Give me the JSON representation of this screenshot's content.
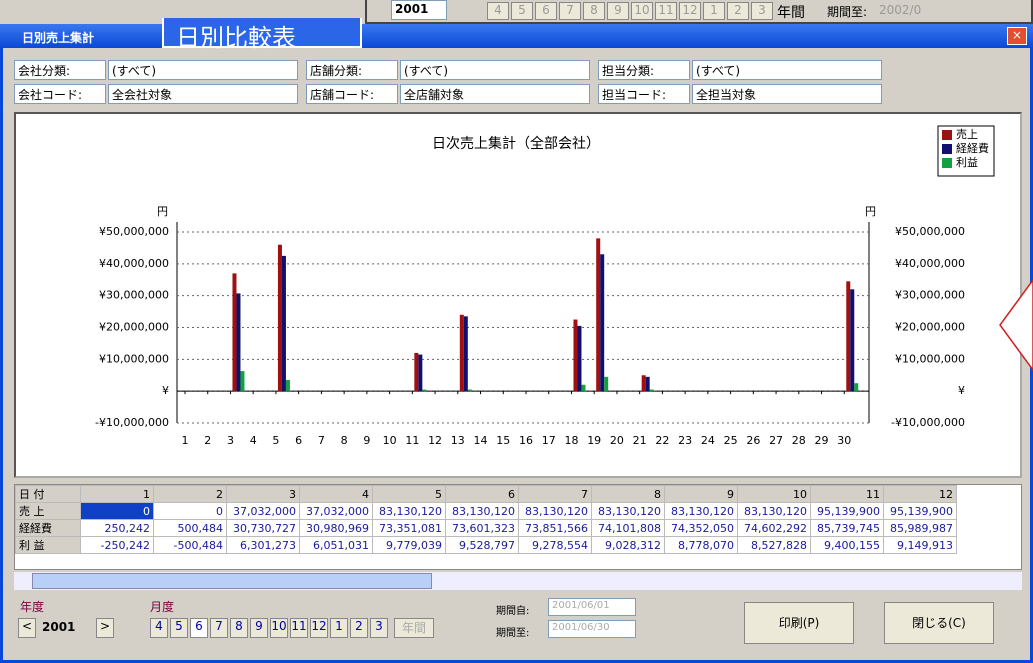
{
  "top_window": {
    "year": "2001",
    "months": [
      "4",
      "5",
      "6",
      "7",
      "8",
      "9",
      "10",
      "11",
      "12",
      "1",
      "2",
      "3"
    ],
    "annual": "年間",
    "period_to_label": "期間至:",
    "period_to_value": "2002/0"
  },
  "title_bar": {
    "title": "日別売上集計",
    "overlay_label": "日別比較表"
  },
  "filters": [
    {
      "label": "会社分類:",
      "value": "(すべて)"
    },
    {
      "label": "店舗分類:",
      "value": "(すべて)"
    },
    {
      "label": "担当分類:",
      "value": "(すべて)"
    }
  ],
  "codes": [
    {
      "label": "会社コード:",
      "value": "全会社対象"
    },
    {
      "label": "店舗コード:",
      "value": "全店舗対象"
    },
    {
      "label": "担当コード:",
      "value": "全担当対象"
    }
  ],
  "chart_data": {
    "type": "bar",
    "title": "日次売上集計（全部会社）",
    "y_label": "円",
    "y2_label": "円",
    "categories": [
      "1",
      "2",
      "3",
      "4",
      "5",
      "6",
      "7",
      "8",
      "9",
      "10",
      "11",
      "12",
      "13",
      "14",
      "15",
      "16",
      "17",
      "18",
      "19",
      "20",
      "21",
      "22",
      "23",
      "24",
      "25",
      "26",
      "27",
      "28",
      "29",
      "30"
    ],
    "series": [
      {
        "name": "売上",
        "color": "#a01010",
        "values": [
          0,
          0,
          37000000,
          0,
          46000000,
          0,
          0,
          0,
          0,
          0,
          12000000,
          0,
          24000000,
          0,
          0,
          0,
          0,
          22500000,
          48000000,
          0,
          5000000,
          0,
          0,
          0,
          0,
          0,
          0,
          0,
          0,
          34500000
        ]
      },
      {
        "name": "経経費",
        "color": "#10106e",
        "values": [
          0,
          0,
          30700000,
          0,
          42500000,
          0,
          0,
          0,
          0,
          0,
          11500000,
          0,
          23500000,
          0,
          0,
          0,
          0,
          20500000,
          43000000,
          0,
          4500000,
          0,
          0,
          0,
          0,
          0,
          0,
          0,
          0,
          32000000
        ]
      },
      {
        "name": "利益",
        "color": "#12a040",
        "values": [
          0,
          0,
          6300000,
          0,
          3500000,
          0,
          0,
          0,
          0,
          0,
          500000,
          0,
          500000,
          0,
          0,
          0,
          0,
          2000000,
          4500000,
          0,
          500000,
          0,
          0,
          0,
          0,
          0,
          0,
          0,
          0,
          2500000
        ]
      }
    ],
    "ylim": [
      -10000000,
      50000000
    ],
    "yticks": [
      {
        "value": -10000000,
        "label": "-¥10,000,000"
      },
      {
        "value": 0,
        "label": "¥"
      },
      {
        "value": 10000000,
        "label": "¥10,000,000"
      },
      {
        "value": 20000000,
        "label": "¥20,000,000"
      },
      {
        "value": 30000000,
        "label": "¥30,000,000"
      },
      {
        "value": 40000000,
        "label": "¥40,000,000"
      },
      {
        "value": 50000000,
        "label": "¥50,000,000"
      }
    ],
    "grid": true,
    "legend": "top-right"
  },
  "table": {
    "header": [
      "日 付",
      "1",
      "2",
      "3",
      "4",
      "5",
      "6",
      "7",
      "8",
      "9",
      "10",
      "11",
      "12"
    ],
    "rows": [
      [
        "売 上",
        "0",
        "0",
        "37,032,000",
        "37,032,000",
        "83,130,120",
        "83,130,120",
        "83,130,120",
        "83,130,120",
        "83,130,120",
        "83,130,120",
        "95,139,900",
        "95,139,900"
      ],
      [
        "経経費",
        "250,242",
        "500,484",
        "30,730,727",
        "30,980,969",
        "73,351,081",
        "73,601,323",
        "73,851,566",
        "74,101,808",
        "74,352,050",
        "74,602,292",
        "85,739,745",
        "85,989,987"
      ],
      [
        "利 益",
        "-250,242",
        "-500,484",
        "6,301,273",
        "6,051,031",
        "9,779,039",
        "9,528,797",
        "9,278,554",
        "9,028,312",
        "8,778,070",
        "8,527,828",
        "9,400,155",
        "9,149,913"
      ]
    ]
  },
  "footer": {
    "year_label": "年度",
    "year": "2001",
    "month_label": "月度",
    "months": [
      "4",
      "5",
      "6",
      "7",
      "8",
      "9",
      "10",
      "11",
      "12",
      "1",
      "2",
      "3"
    ],
    "annual": "年間",
    "from_label": "期間自:",
    "from_value": "2001/06/01",
    "to_label": "期間至:",
    "to_value": "2001/06/30",
    "print": "印刷(P)",
    "close": "閉じる(C)"
  }
}
